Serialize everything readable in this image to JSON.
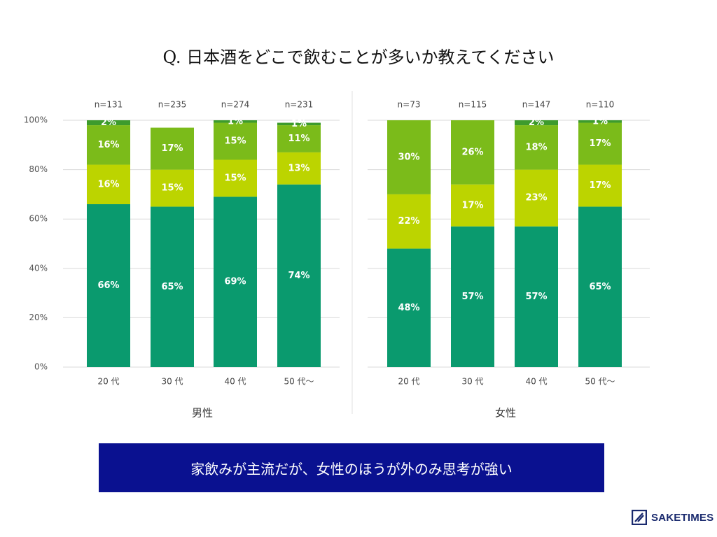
{
  "title": "Q. 日本酒をどこで飲むことが多いか教えてください",
  "banner_text": "家飲みが主流だが、女性のほうが外のみ思考が強い",
  "logo": {
    "text": "SAKETIMES",
    "icon": "saketimes-logo-icon"
  },
  "colors": {
    "segments": [
      "#0a9a6e",
      "#bcd400",
      "#7bbb1a",
      "#3d9b2d"
    ],
    "banner": "#0a1190"
  },
  "chart_data": {
    "type": "bar",
    "stacked": true,
    "ylim": [
      0,
      100
    ],
    "yticks": [
      "0%",
      "20%",
      "40%",
      "60%",
      "80%",
      "100%"
    ],
    "grid": true,
    "groups": [
      {
        "label": "男性",
        "categories": [
          "20 代",
          "30 代",
          "40 代",
          "50 代〜"
        ],
        "n_labels": [
          "n=131",
          "n=235",
          "n=274",
          "n=231"
        ],
        "series": [
          {
            "name": "segment-1",
            "values": [
              66,
              65,
              69,
              74
            ]
          },
          {
            "name": "segment-2",
            "values": [
              16,
              15,
              15,
              13
            ]
          },
          {
            "name": "segment-3",
            "values": [
              16,
              17,
              15,
              11
            ]
          },
          {
            "name": "segment-4",
            "values": [
              2,
              0,
              1,
              1
            ]
          }
        ],
        "value_labels": [
          [
            "66%",
            "65%",
            "69%",
            "74%"
          ],
          [
            "16%",
            "15%",
            "15%",
            "13%"
          ],
          [
            "16%",
            "17%",
            "15%",
            "11%"
          ],
          [
            "2%",
            "",
            "1%",
            "1%"
          ]
        ]
      },
      {
        "label": "女性",
        "categories": [
          "20 代",
          "30 代",
          "40 代",
          "50 代〜"
        ],
        "n_labels": [
          "n=73",
          "n=115",
          "n=147",
          "n=110"
        ],
        "series": [
          {
            "name": "segment-1",
            "values": [
              48,
              57,
              57,
              65
            ]
          },
          {
            "name": "segment-2",
            "values": [
              22,
              17,
              23,
              17
            ]
          },
          {
            "name": "segment-3",
            "values": [
              30,
              26,
              18,
              17
            ]
          },
          {
            "name": "segment-4",
            "values": [
              0,
              0,
              2,
              1
            ]
          }
        ],
        "value_labels": [
          [
            "48%",
            "57%",
            "57%",
            "65%"
          ],
          [
            "22%",
            "17%",
            "23%",
            "17%"
          ],
          [
            "30%",
            "26%",
            "18%",
            "17%"
          ],
          [
            "",
            "",
            "2%",
            "1%"
          ]
        ]
      }
    ]
  }
}
